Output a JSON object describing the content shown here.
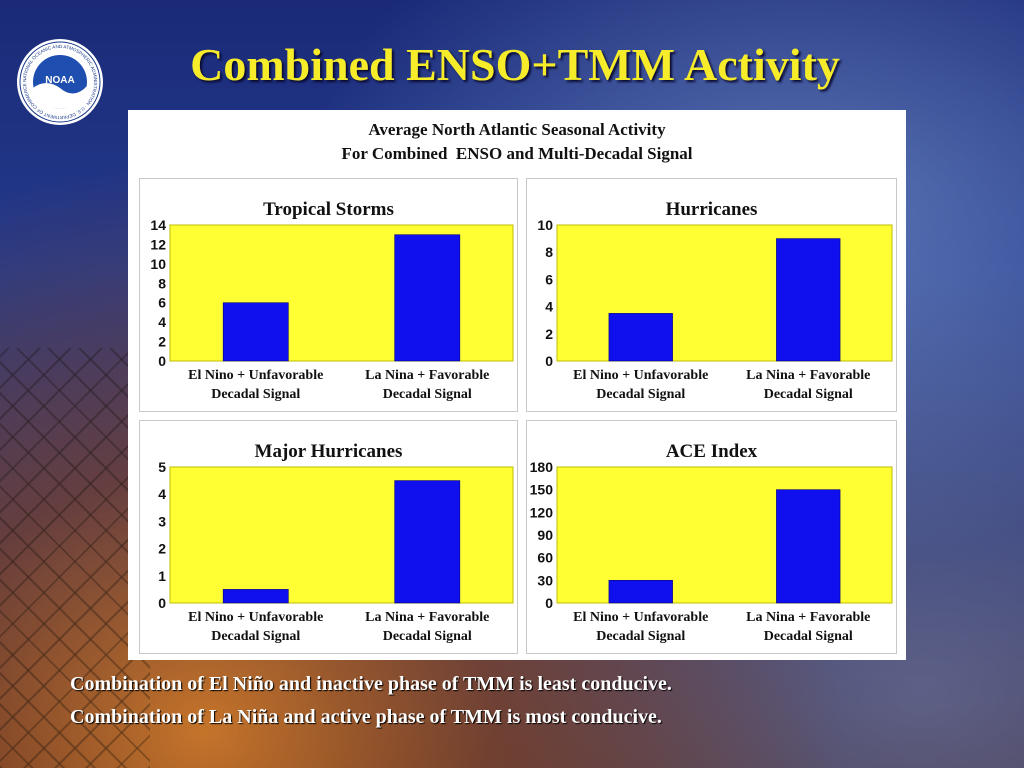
{
  "slide": {
    "title": "Combined ENSO+TMM Activity",
    "logo_text": "NOAA",
    "logo_ring_text": "NATIONAL OCEANIC AND ATMOSPHERIC ADMINISTRATION · U.S. DEPARTMENT OF COMMERCE",
    "caption_line1": "Combination of El Niño and inactive phase of TMM is least conducive.",
    "caption_line2": "Combination of La Niña and active phase of TMM is most conducive."
  },
  "figure": {
    "title_line1": "Average North Atlantic Seasonal Activity",
    "title_line2": "For Combined  ENSO and Multi-Decadal Signal"
  },
  "colors": {
    "title_yellow": "#f6ec2a",
    "plot_yellow": "#ffff33",
    "bar_blue": "#1010ee"
  },
  "chart_data": [
    {
      "type": "bar",
      "title": "Tropical Storms",
      "categories": [
        [
          "El Nino + Unfavorable",
          "Decadal Signal"
        ],
        [
          "La Nina + Favorable",
          "Decadal Signal"
        ]
      ],
      "values": [
        6,
        13
      ],
      "ylim": [
        0,
        14
      ],
      "yticks": [
        0,
        2,
        4,
        6,
        8,
        10,
        12,
        14
      ],
      "grid": false
    },
    {
      "type": "bar",
      "title": "Hurricanes",
      "categories": [
        [
          "El Nino + Unfavorable",
          "Decadal Signal"
        ],
        [
          "La Nina + Favorable",
          "Decadal Signal"
        ]
      ],
      "values": [
        3.5,
        9
      ],
      "ylim": [
        0,
        10
      ],
      "yticks": [
        0,
        2,
        4,
        6,
        8,
        10
      ],
      "grid": false
    },
    {
      "type": "bar",
      "title": "Major Hurricanes",
      "categories": [
        [
          "El Nino + Unfavorable",
          "Decadal Signal"
        ],
        [
          "La Nina + Favorable",
          "Decadal Signal"
        ]
      ],
      "values": [
        0.5,
        4.5
      ],
      "ylim": [
        0,
        5
      ],
      "yticks": [
        0,
        1,
        2,
        3,
        4,
        5
      ],
      "grid": false
    },
    {
      "type": "bar",
      "title": "ACE Index",
      "categories": [
        [
          "El Nino + Unfavorable",
          "Decadal Signal"
        ],
        [
          "La Nina + Favorable",
          "Decadal Signal"
        ]
      ],
      "values": [
        30,
        150
      ],
      "ylim": [
        0,
        180
      ],
      "yticks": [
        0,
        30,
        60,
        90,
        120,
        150,
        180
      ],
      "grid": false
    }
  ]
}
